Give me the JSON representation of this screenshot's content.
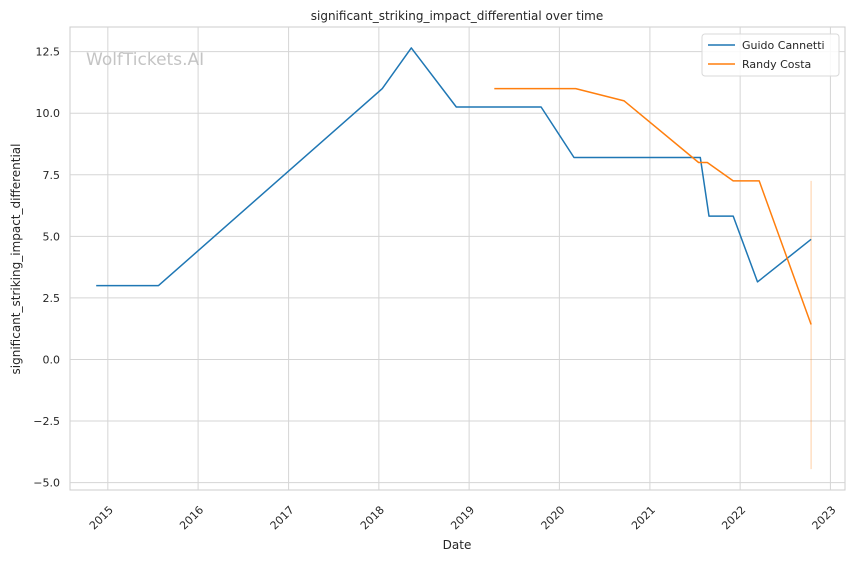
{
  "watermark": "WolfTickets.AI",
  "chart_data": {
    "type": "line",
    "title": "significant_striking_impact_differential over time",
    "xlabel": "Date",
    "ylabel": "significant_striking_impact_differential",
    "x_axis": "date",
    "xlim": [
      "2014-08-01",
      "2023-03-01"
    ],
    "ylim": [
      -5.3,
      13.5
    ],
    "x_ticks": [
      "2015",
      "2016",
      "2017",
      "2018",
      "2019",
      "2020",
      "2021",
      "2022",
      "2023"
    ],
    "y_ticks": [
      -5.0,
      -2.5,
      0.0,
      2.5,
      5.0,
      7.5,
      10.0,
      12.5
    ],
    "y_tick_labels": [
      "−5.0",
      "−2.5",
      "0.0",
      "2.5",
      "5.0",
      "7.5",
      "10.0",
      "12.5"
    ],
    "grid": true,
    "legend_position": "top-right",
    "series": [
      {
        "name": "Guido Cannetti",
        "color": "#1f77b4",
        "points": [
          [
            "2014-11-15",
            3.0
          ],
          [
            "2015-07-25",
            3.0
          ],
          [
            "2018-01-15",
            11.0
          ],
          [
            "2018-05-12",
            12.65
          ],
          [
            "2018-11-10",
            10.25
          ],
          [
            "2019-10-19",
            10.25
          ],
          [
            "2020-02-29",
            8.2
          ],
          [
            "2021-07-24",
            8.2
          ],
          [
            "2021-08-28",
            5.82
          ],
          [
            "2021-12-04",
            5.82
          ],
          [
            "2022-03-12",
            3.15
          ],
          [
            "2022-10-15",
            4.88
          ]
        ]
      },
      {
        "name": "Randy Costa",
        "color": "#ff7f0e",
        "points": [
          [
            "2019-04-13",
            11.0
          ],
          [
            "2020-03-07",
            11.0
          ],
          [
            "2020-09-19",
            10.5
          ],
          [
            "2021-07-17",
            8.0
          ],
          [
            "2021-08-21",
            8.0
          ],
          [
            "2021-12-04",
            7.25
          ],
          [
            "2022-03-19",
            7.25
          ],
          [
            "2022-10-15",
            1.42
          ]
        ],
        "error_band": {
          "x": "2022-10-15",
          "low": -4.45,
          "high": 7.25
        }
      }
    ]
  }
}
